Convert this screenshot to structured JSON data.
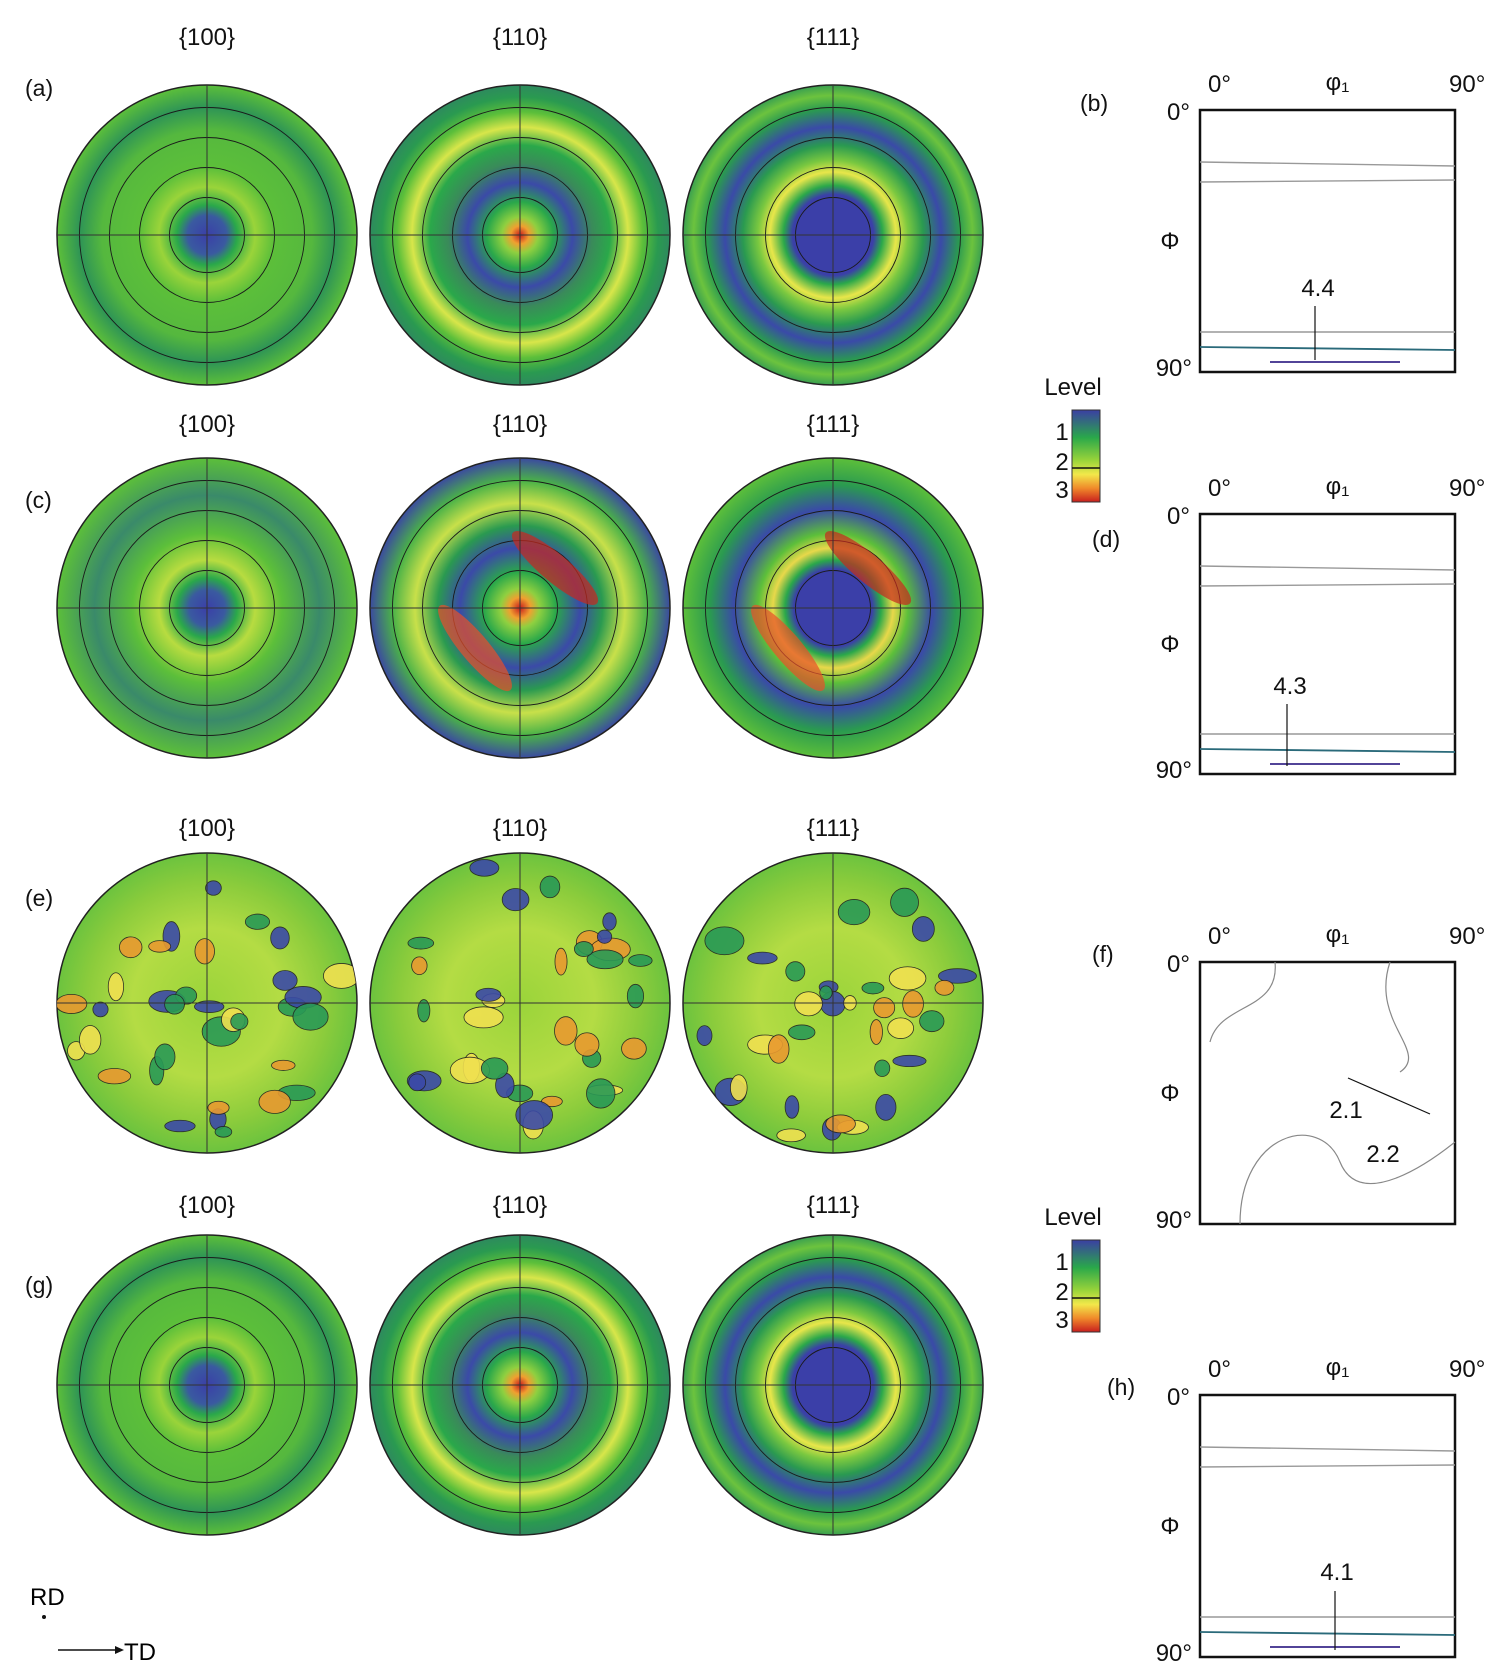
{
  "pole_figure_rows": [
    {
      "panel": "(a)",
      "titles": [
        "{100}",
        "{110}",
        "{111}"
      ],
      "style": "strong"
    },
    {
      "panel": "(c)",
      "titles": [
        "{100}",
        "{110}",
        "{111}"
      ],
      "style": "tilted"
    },
    {
      "panel": "(e)",
      "titles": [
        "{100}",
        "{110}",
        "{111}"
      ],
      "style": "random"
    },
    {
      "panel": "(g)",
      "titles": [
        "{100}",
        "{110}",
        "{111}"
      ],
      "style": "strong"
    }
  ],
  "odf_sections": [
    {
      "panel": "(b)",
      "x_left": "0°",
      "x_right": "90°",
      "x_symbol": "φ₁",
      "y_top": "0°",
      "y_bottom": "90°",
      "y_symbol": "Φ",
      "annotations": [
        "4.4"
      ]
    },
    {
      "panel": "(d)",
      "x_left": "0°",
      "x_right": "90°",
      "x_symbol": "φ₁",
      "y_top": "0°",
      "y_bottom": "90°",
      "y_symbol": "Φ",
      "annotations": [
        "4.3"
      ]
    },
    {
      "panel": "(f)",
      "x_left": "0°",
      "x_right": "90°",
      "x_symbol": "φ₁",
      "y_top": "0°",
      "y_bottom": "90°",
      "y_symbol": "Φ",
      "annotations": [
        "2.1",
        "2.2"
      ]
    },
    {
      "panel": "(h)",
      "x_left": "0°",
      "x_right": "90°",
      "x_symbol": "φ₁",
      "y_top": "0°",
      "y_bottom": "90°",
      "y_symbol": "Φ",
      "annotations": [
        "4.1"
      ]
    }
  ],
  "legends": [
    {
      "title": "Level",
      "ticks": [
        "1",
        "2",
        "3"
      ]
    },
    {
      "title": "Level",
      "ticks": [
        "1",
        "2",
        "3"
      ]
    }
  ],
  "axes_indicator": {
    "rd": "RD",
    "td": "TD"
  },
  "colors": {
    "low": "#3b3fa3",
    "mid": "#2aa84a",
    "green": "#5cbf3a",
    "yellow": "#e6e64a",
    "high": "#d4281e"
  }
}
